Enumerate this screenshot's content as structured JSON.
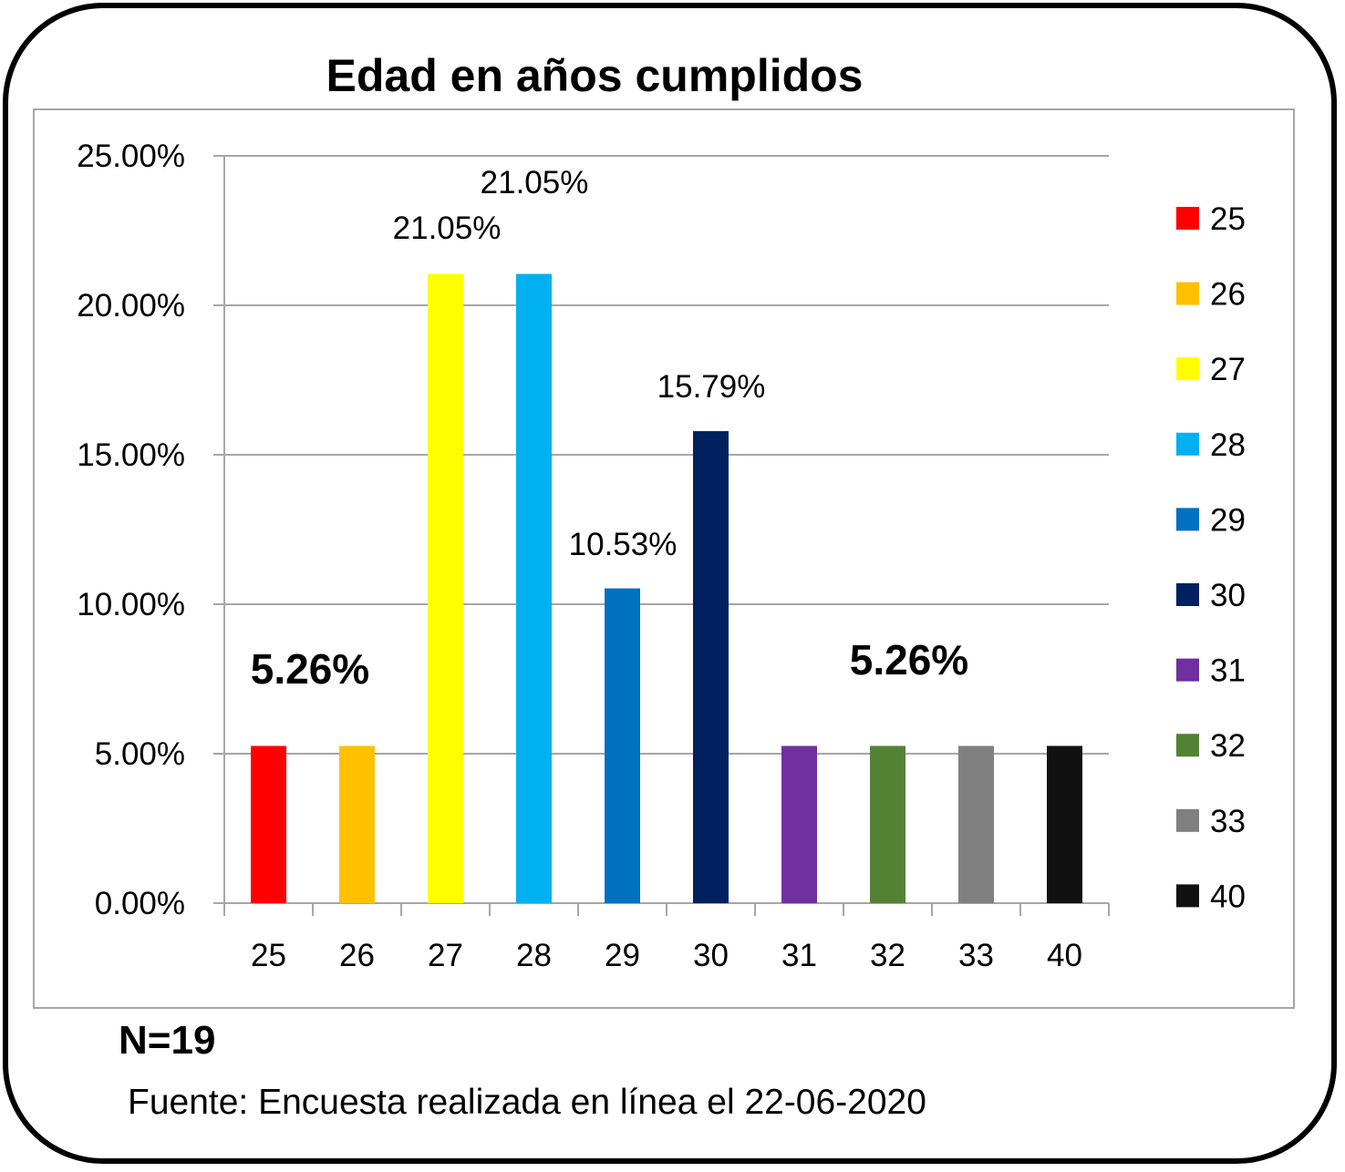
{
  "chart_data": {
    "type": "bar",
    "title": "Edad en años cumplidos",
    "categories": [
      "25",
      "26",
      "27",
      "28",
      "29",
      "30",
      "31",
      "32",
      "33",
      "40"
    ],
    "values": [
      5.26,
      5.26,
      21.05,
      21.05,
      10.53,
      15.79,
      5.26,
      5.26,
      5.26,
      5.26
    ],
    "colors": [
      "#ff0000",
      "#ffc000",
      "#ffff00",
      "#00b0f0",
      "#0070c0",
      "#002060",
      "#7030a0",
      "#548235",
      "#808080",
      "#111111"
    ],
    "ylim": [
      0,
      25
    ],
    "yticks": [
      "0.00%",
      "5.00%",
      "10.00%",
      "15.00%",
      "20.00%",
      "25.00%"
    ],
    "xlabel": "",
    "ylabel": "",
    "grid": true,
    "legend_position": "right",
    "data_labels": [
      {
        "category": "27",
        "text": "21.05%"
      },
      {
        "category": "28",
        "text": "21.05%"
      },
      {
        "category": "29",
        "text": "10.53%"
      },
      {
        "category": "30",
        "text": "15.79%"
      }
    ],
    "annotations": [
      "5.26%",
      "5.26%"
    ]
  },
  "footer": {
    "n": "N=19",
    "source": "Fuente: Encuesta realizada en línea el 22-06-2020"
  }
}
